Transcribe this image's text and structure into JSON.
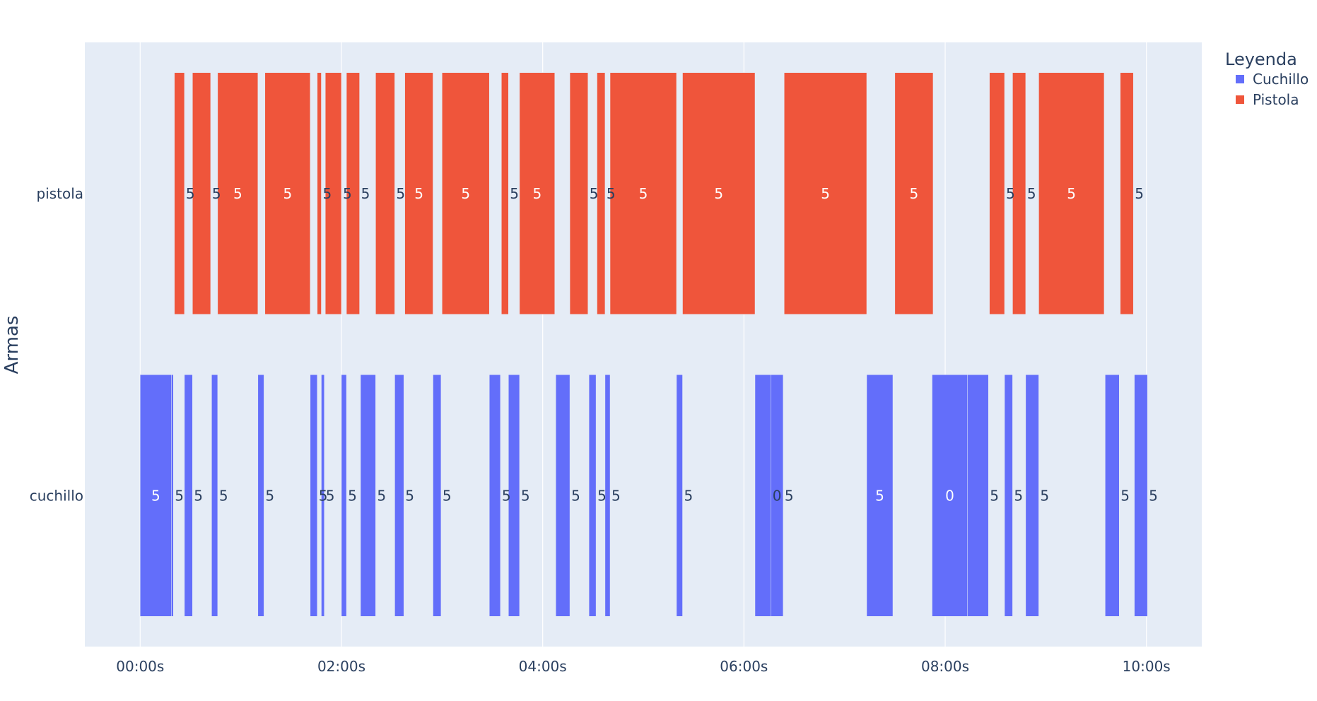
{
  "chart_data": {
    "type": "bar",
    "orientation": "horizontal-timeline",
    "title": "",
    "xlabel": "",
    "ylabel": "Armas",
    "x_unit": "seconds",
    "xlim": [
      -0.55,
      10.55
    ],
    "x_tick_values": [
      0,
      2,
      4,
      6,
      8,
      10
    ],
    "x_ticks": [
      "00:00s",
      "02:00s",
      "04:00s",
      "06:00s",
      "08:00s",
      "10:00s"
    ],
    "categories": [
      "pistola",
      "cuchillo"
    ],
    "grid": true,
    "legend": {
      "title": "Leyenda",
      "placement": "top-right"
    },
    "series": [
      {
        "name": "Cuchillo",
        "category": "cuchillo",
        "color": "#636efa",
        "segments": [
          {
            "start": 0.0,
            "end": 0.31,
            "label": "5"
          },
          {
            "start": 0.31,
            "end": 0.33,
            "label": "5"
          },
          {
            "start": 0.44,
            "end": 0.52,
            "label": "5"
          },
          {
            "start": 0.71,
            "end": 0.77,
            "label": "5"
          },
          {
            "start": 1.17,
            "end": 1.23,
            "label": "5"
          },
          {
            "start": 1.69,
            "end": 1.76,
            "label": "5"
          },
          {
            "start": 1.8,
            "end": 1.83,
            "label": "5"
          },
          {
            "start": 2.0,
            "end": 2.05,
            "label": "5"
          },
          {
            "start": 2.19,
            "end": 2.34,
            "label": "5"
          },
          {
            "start": 2.53,
            "end": 2.62,
            "label": "5"
          },
          {
            "start": 2.91,
            "end": 2.99,
            "label": "5"
          },
          {
            "start": 3.47,
            "end": 3.58,
            "label": "5"
          },
          {
            "start": 3.66,
            "end": 3.77,
            "label": "5"
          },
          {
            "start": 4.13,
            "end": 4.27,
            "label": "5"
          },
          {
            "start": 4.46,
            "end": 4.53,
            "label": "5"
          },
          {
            "start": 4.62,
            "end": 4.67,
            "label": "5"
          },
          {
            "start": 5.33,
            "end": 5.39,
            "label": "5"
          },
          {
            "start": 6.11,
            "end": 6.27,
            "label": "0"
          },
          {
            "start": 6.27,
            "end": 6.39,
            "label": "5"
          },
          {
            "start": 7.22,
            "end": 7.48,
            "label": "5"
          },
          {
            "start": 7.87,
            "end": 8.22,
            "label": "0"
          },
          {
            "start": 8.22,
            "end": 8.43,
            "label": "5"
          },
          {
            "start": 8.59,
            "end": 8.67,
            "label": "5"
          },
          {
            "start": 8.8,
            "end": 8.93,
            "label": "5"
          },
          {
            "start": 9.59,
            "end": 9.73,
            "label": "5"
          },
          {
            "start": 9.88,
            "end": 10.01,
            "label": "5"
          }
        ]
      },
      {
        "name": "Pistola",
        "category": "pistola",
        "color": "#ef553b",
        "segments": [
          {
            "start": 0.34,
            "end": 0.44,
            "label": "5"
          },
          {
            "start": 0.52,
            "end": 0.7,
            "label": "5"
          },
          {
            "start": 0.77,
            "end": 1.17,
            "label": "5"
          },
          {
            "start": 1.24,
            "end": 1.69,
            "label": "5"
          },
          {
            "start": 1.76,
            "end": 1.8,
            "label": "5"
          },
          {
            "start": 1.84,
            "end": 2.0,
            "label": "5"
          },
          {
            "start": 2.05,
            "end": 2.18,
            "label": "5"
          },
          {
            "start": 2.34,
            "end": 2.53,
            "label": "5"
          },
          {
            "start": 2.63,
            "end": 2.91,
            "label": "5"
          },
          {
            "start": 3.0,
            "end": 3.47,
            "label": "5"
          },
          {
            "start": 3.59,
            "end": 3.66,
            "label": "5"
          },
          {
            "start": 3.77,
            "end": 4.12,
            "label": "5"
          },
          {
            "start": 4.27,
            "end": 4.45,
            "label": "5"
          },
          {
            "start": 4.54,
            "end": 4.62,
            "label": "5"
          },
          {
            "start": 4.67,
            "end": 5.33,
            "label": "5"
          },
          {
            "start": 5.39,
            "end": 6.11,
            "label": "5"
          },
          {
            "start": 6.4,
            "end": 7.22,
            "label": "5"
          },
          {
            "start": 7.5,
            "end": 7.88,
            "label": "5"
          },
          {
            "start": 8.44,
            "end": 8.59,
            "label": "5"
          },
          {
            "start": 8.67,
            "end": 8.8,
            "label": "5"
          },
          {
            "start": 8.93,
            "end": 9.58,
            "label": "5"
          },
          {
            "start": 9.74,
            "end": 9.87,
            "label": "5"
          }
        ]
      }
    ]
  }
}
